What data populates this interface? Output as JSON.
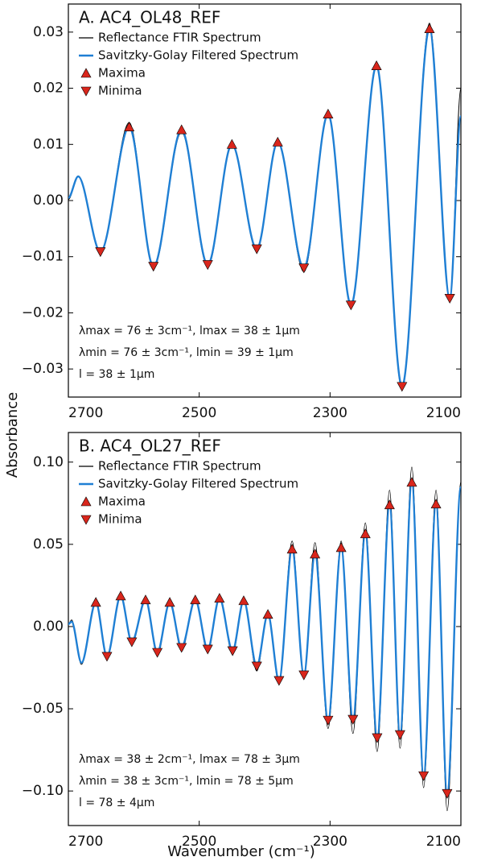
{
  "axis_labels": {
    "y": "Absorbance",
    "x": "Wavenumber (cm⁻¹)"
  },
  "chart_data": [
    {
      "type": "line",
      "title": "A. AC4_OL48_REF",
      "xlim": [
        2700,
        2100
      ],
      "xticks": [
        2700,
        2500,
        2300,
        2100
      ],
      "ylim": [
        -0.035,
        0.035
      ],
      "yticks": [
        {
          "value": -0.03,
          "label": "−0.03"
        },
        {
          "value": -0.02,
          "label": "−0.02"
        },
        {
          "value": -0.01,
          "label": "−0.01"
        },
        {
          "value": 0,
          "label": "0.00"
        },
        0.01,
        0.02,
        0.03
      ],
      "series": [
        {
          "name": "Reflectance FTIR Spectrum",
          "color": "#000000",
          "style": "line",
          "x": [
            2700,
            2685,
            2651,
            2607,
            2570,
            2527,
            2487,
            2450,
            2412,
            2380,
            2340,
            2303,
            2268,
            2229,
            2190,
            2148,
            2117,
            2100
          ],
          "values": [
            0.0002,
            0.0044,
            -0.0094,
            0.0139,
            -0.0121,
            0.0122,
            -0.0118,
            0.0098,
            -0.009,
            0.0108,
            -0.0127,
            0.0157,
            -0.019,
            0.0244,
            -0.0337,
            0.0316,
            -0.018,
            0.02
          ]
        },
        {
          "name": "Savitzky-Golay Filtered Spectrum",
          "color": "#1f7fd4",
          "style": "line",
          "x": [
            2700,
            2685,
            2651,
            2607,
            2570,
            2527,
            2487,
            2450,
            2412,
            2380,
            2340,
            2303,
            2268,
            2229,
            2190,
            2148,
            2117,
            2100
          ],
          "values": [
            0.0005,
            0.0043,
            -0.0091,
            0.0131,
            -0.0117,
            0.0126,
            -0.0114,
            0.01,
            -0.0086,
            0.0104,
            -0.012,
            0.0154,
            -0.0186,
            0.024,
            -0.0331,
            0.0306,
            -0.0174,
            0.015
          ]
        },
        {
          "name": "Maxima",
          "color": "#d9261c",
          "style": "triangle-up",
          "x": [
            2607,
            2527,
            2450,
            2380,
            2303,
            2229,
            2148
          ],
          "values": [
            0.0131,
            0.0126,
            0.01,
            0.0104,
            0.0154,
            0.024,
            0.0306
          ]
        },
        {
          "name": "Minima",
          "color": "#d9261c",
          "style": "triangle-down",
          "x": [
            2651,
            2570,
            2487,
            2412,
            2340,
            2268,
            2190,
            2117
          ],
          "values": [
            -0.0091,
            -0.0117,
            -0.0114,
            -0.0086,
            -0.012,
            -0.0186,
            -0.0331,
            -0.0174
          ]
        }
      ],
      "annotations": [
        "λmax = 76 ± 3cm⁻¹, lmax = 38 ± 1μm",
        "λmin = 76 ± 3cm⁻¹, lmin = 39 ± 1μm",
        "l = 38 ± 1μm"
      ]
    },
    {
      "type": "line",
      "title": "B. AC4_OL27_REF",
      "xlim": [
        2700,
        2100
      ],
      "xticks": [
        2700,
        2500,
        2300,
        2100
      ],
      "ylim": [
        -0.121,
        0.118
      ],
      "yticks": [
        {
          "value": -0.1,
          "label": "−0.10"
        },
        {
          "value": -0.05,
          "label": "−0.05"
        },
        {
          "value": 0,
          "label": "0.00"
        },
        0.05,
        {
          "value": 0.1,
          "label": "0.10"
        }
      ],
      "series": [
        {
          "name": "Reflectance FTIR Spectrum",
          "color": "#000000",
          "style": "line",
          "x": [
            2700,
            2695,
            2680,
            2658,
            2641,
            2620,
            2603,
            2582,
            2564,
            2545,
            2527,
            2506,
            2487,
            2469,
            2449,
            2432,
            2412,
            2395,
            2378,
            2358,
            2340,
            2323,
            2303,
            2283,
            2265,
            2246,
            2228,
            2209,
            2193,
            2175,
            2157,
            2138,
            2121,
            2100
          ],
          "values": [
            0.0015,
            0.004,
            -0.023,
            0.016,
            -0.019,
            0.02,
            -0.011,
            0.018,
            -0.018,
            0.016,
            -0.015,
            0.018,
            -0.016,
            0.019,
            -0.017,
            0.017,
            -0.027,
            0.009,
            -0.035,
            0.052,
            -0.032,
            0.051,
            -0.062,
            0.052,
            -0.065,
            0.063,
            -0.076,
            0.083,
            -0.074,
            0.097,
            -0.098,
            0.083,
            -0.112,
            0.088
          ]
        },
        {
          "name": "Savitzky-Golay Filtered Spectrum",
          "color": "#1f7fd4",
          "style": "line",
          "x": [
            2700,
            2695,
            2680,
            2658,
            2641,
            2620,
            2603,
            2582,
            2564,
            2545,
            2527,
            2506,
            2487,
            2469,
            2449,
            2432,
            2412,
            2395,
            2378,
            2358,
            2340,
            2323,
            2303,
            2283,
            2265,
            2246,
            2228,
            2209,
            2193,
            2175,
            2157,
            2138,
            2121,
            2100
          ],
          "values": [
            0.0015,
            0.003,
            -0.022,
            0.0147,
            -0.0181,
            0.0186,
            -0.0093,
            0.0162,
            -0.0157,
            0.0147,
            -0.0127,
            0.0162,
            -0.0137,
            0.0172,
            -0.0147,
            0.0157,
            -0.024,
            0.0074,
            -0.0328,
            0.0471,
            -0.0294,
            0.0441,
            -0.0569,
            0.048,
            -0.0564,
            0.0564,
            -0.0676,
            0.074,
            -0.0657,
            0.0877,
            -0.0907,
            0.0745,
            -0.1015,
            0.0848
          ]
        },
        {
          "name": "Maxima",
          "color": "#d9261c",
          "style": "triangle-up",
          "x": [
            2658,
            2620,
            2582,
            2545,
            2506,
            2469,
            2432,
            2395,
            2358,
            2323,
            2283,
            2246,
            2209,
            2175,
            2138
          ],
          "values": [
            0.0147,
            0.0186,
            0.0162,
            0.0147,
            0.0162,
            0.0172,
            0.0157,
            0.0074,
            0.0471,
            0.0441,
            0.048,
            0.0564,
            0.074,
            0.0877,
            0.0745
          ]
        },
        {
          "name": "Minima",
          "color": "#d9261c",
          "style": "triangle-down",
          "x": [
            2641,
            2603,
            2564,
            2527,
            2487,
            2449,
            2412,
            2378,
            2340,
            2303,
            2265,
            2228,
            2193,
            2157,
            2121
          ],
          "values": [
            -0.0181,
            -0.0093,
            -0.0157,
            -0.0127,
            -0.0137,
            -0.0147,
            -0.024,
            -0.0328,
            -0.0294,
            -0.0569,
            -0.0564,
            -0.0676,
            -0.0657,
            -0.0907,
            -0.1015
          ]
        }
      ],
      "annotations": [
        "λmax = 38 ± 2cm⁻¹, lmax = 78 ± 3μm",
        "λmin = 38 ± 3cm⁻¹, lmin = 78 ± 5μm",
        "l = 78 ± 4μm"
      ]
    }
  ]
}
